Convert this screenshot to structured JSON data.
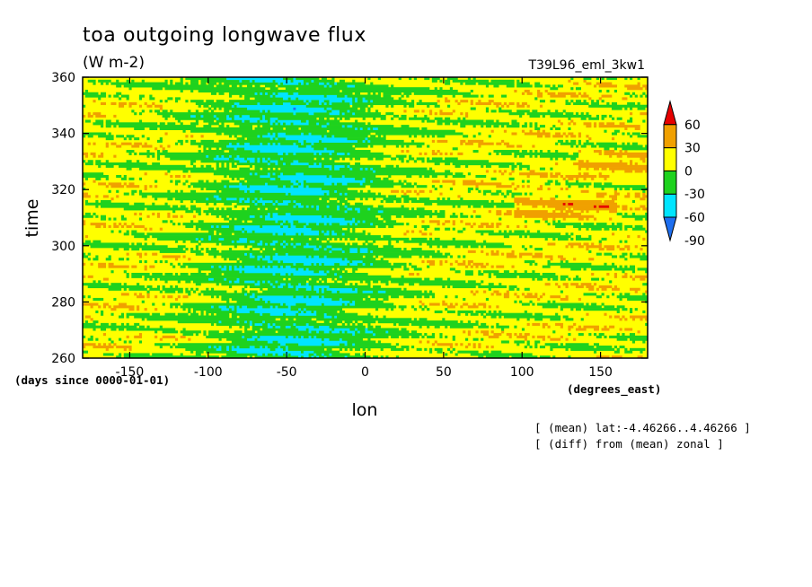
{
  "chart_data": {
    "type": "heatmap",
    "title": "toa outgoing longwave flux",
    "units": "(W m-2)",
    "experiment": "T39L96_eml_3kw1",
    "xlabel": "lon",
    "xunits": "(degrees_east)",
    "ylabel": "time",
    "yunits": "(days since 0000-01-01)",
    "xlim": [
      -180,
      180
    ],
    "ylim": [
      260,
      360
    ],
    "x_ticks": [
      -150,
      -100,
      -50,
      0,
      50,
      100,
      150
    ],
    "y_ticks": [
      260,
      280,
      300,
      320,
      340,
      360
    ],
    "x_tick_labels": [
      "-150",
      "-100",
      "-50",
      "0",
      "50",
      "100",
      "150"
    ],
    "y_tick_labels": [
      "260",
      "280",
      "300",
      "320",
      "340",
      "360"
    ],
    "colorbar": {
      "levels": [
        -90,
        -60,
        -30,
        0,
        30,
        60
      ],
      "level_labels": [
        "60",
        "30",
        "0",
        "-30",
        "-60",
        "-90"
      ],
      "colors": [
        "#1e6ff0",
        "#00e5ff",
        "#1ed21e",
        "#ffff00",
        "#f0a000",
        "#e60000"
      ]
    },
    "notes": [
      "[ (mean) lat:-4.46266..4.46266 ]",
      "[ (diff) from (mean) zonal ]"
    ]
  }
}
